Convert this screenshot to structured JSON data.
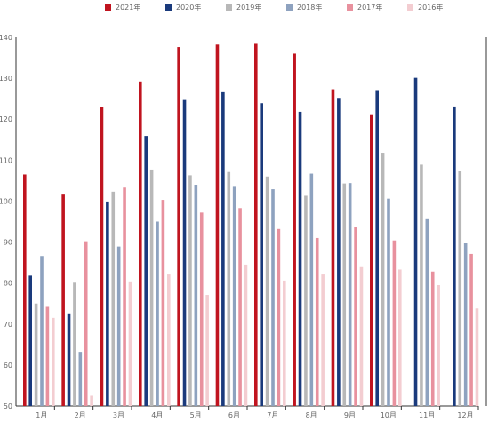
{
  "chart_data": {
    "type": "bar",
    "title": "",
    "xlabel": "",
    "ylabel": "",
    "ylim": [
      50,
      140
    ],
    "yticks": [
      50,
      60,
      70,
      80,
      90,
      100,
      110,
      120,
      130,
      140
    ],
    "grid": false,
    "legend_position": "top-center",
    "categories": [
      "1月",
      "2月",
      "3月",
      "4月",
      "5月",
      "6月",
      "7月",
      "8月",
      "9月",
      "10月",
      "11月",
      "12月"
    ],
    "series": [
      {
        "name": "2021年",
        "color": "#c0141f",
        "values": [
          106.5,
          101.8,
          123,
          129.2,
          137.6,
          138.2,
          138.6,
          136,
          127.3,
          121.2,
          null,
          null
        ]
      },
      {
        "name": "2020年",
        "color": "#1a3a7c",
        "values": [
          81.8,
          72.6,
          99.9,
          115.9,
          124.9,
          126.8,
          123.9,
          121.8,
          125.2,
          127.1,
          130.1,
          123.1
        ]
      },
      {
        "name": "2019年",
        "color": "#b8b8b8",
        "values": [
          75,
          80.3,
          102.3,
          107.7,
          106.3,
          107.1,
          106,
          101.3,
          104.3,
          111.8,
          108.9,
          107.3
        ]
      },
      {
        "name": "2018年",
        "color": "#8ea2bf",
        "values": [
          86.6,
          63.2,
          88.9,
          95,
          104,
          103.7,
          102.9,
          106.7,
          104.4,
          100.6,
          95.8,
          89.8
        ]
      },
      {
        "name": "2017年",
        "color": "#e8919e",
        "values": [
          74.4,
          90.2,
          103.3,
          100.3,
          97.2,
          98.3,
          93.2,
          91,
          93.8,
          90.4,
          82.8,
          87.1
        ]
      },
      {
        "name": "2016年",
        "color": "#f3cdd1",
        "values": [
          71.5,
          52.5,
          80.4,
          82.3,
          77.1,
          84.5,
          80.6,
          82.3,
          84.1,
          83.3,
          79.5,
          73.8
        ]
      }
    ]
  }
}
